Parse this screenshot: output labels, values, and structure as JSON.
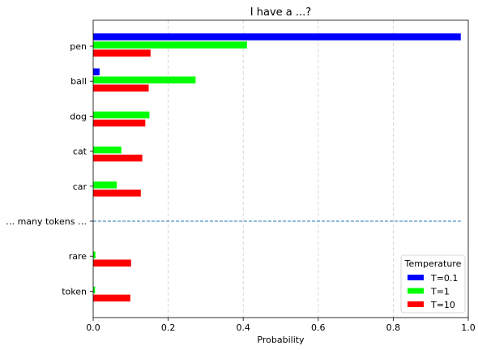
{
  "chart_data": {
    "type": "bar",
    "orientation": "horizontal",
    "title": "I have a ...?",
    "xlabel": "Probability",
    "ylabel": "",
    "xlim": [
      0,
      1.0
    ],
    "xticks": [
      "0.0",
      "0.2",
      "0.4",
      "0.6",
      "0.8",
      "1.0"
    ],
    "categories": [
      "pen",
      "ball",
      "dog",
      "cat",
      "car",
      "… many tokens …",
      "rare",
      "token"
    ],
    "separator_category": "… many tokens …",
    "grid": {
      "x": true,
      "y": false,
      "style": "dashed"
    },
    "series": [
      {
        "name": "T=0.1",
        "color": "#0000ff",
        "values": [
          0.98,
          0.017,
          0.0,
          0.0,
          0.0,
          null,
          0.0,
          0.0
        ]
      },
      {
        "name": "T=1",
        "color": "#00ff00",
        "values": [
          0.41,
          0.273,
          0.15,
          0.075,
          0.063,
          null,
          0.006,
          0.005
        ]
      },
      {
        "name": "T=10",
        "color": "#ff0000",
        "values": [
          0.153,
          0.148,
          0.139,
          0.131,
          0.127,
          null,
          0.101,
          0.099
        ]
      }
    ],
    "legend": {
      "title": "Temperature",
      "placement": "lower right"
    },
    "separator_color": "#1f77b4"
  }
}
